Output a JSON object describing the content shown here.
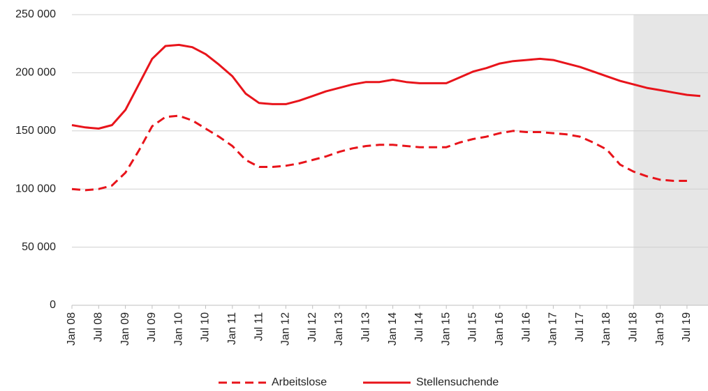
{
  "chart_data": {
    "type": "line",
    "categories": [
      "Jan 08",
      null,
      "Jul 08",
      null,
      "Jan 09",
      null,
      "Jul 09",
      null,
      "Jan 10",
      null,
      "Jul 10",
      null,
      "Jan 11",
      null,
      "Jul 11",
      null,
      "Jan 12",
      null,
      "Jul 12",
      null,
      "Jan 13",
      null,
      "Jul 13",
      null,
      "Jan 14",
      null,
      "Jul 14",
      null,
      "Jan 15",
      null,
      "Jul 15",
      null,
      "Jan 16",
      null,
      "Jul 16",
      null,
      "Jan 17",
      null,
      "Jul 17",
      null,
      "Jan 18",
      null,
      "Jul 18",
      null,
      "Jan 19",
      null,
      "Jul 19",
      null
    ],
    "series": [
      {
        "name": "Arbeitslose",
        "color": "#e8141b",
        "dashed": true,
        "values": [
          100000,
          99000,
          100000,
          103000,
          114000,
          133000,
          154000,
          162000,
          163000,
          159000,
          152000,
          145000,
          137000,
          125000,
          119000,
          119000,
          120000,
          122000,
          125000,
          128000,
          132000,
          135000,
          137000,
          138000,
          138000,
          137000,
          136000,
          136000,
          136000,
          140000,
          143000,
          145000,
          148000,
          150000,
          149000,
          149000,
          148000,
          147000,
          145000,
          140000,
          134000,
          121000,
          115000,
          111000,
          108000,
          107000,
          107000,
          null
        ]
      },
      {
        "name": "Stellensuchende",
        "color": "#e8141b",
        "dashed": false,
        "values": [
          155000,
          153000,
          152000,
          155000,
          168000,
          190000,
          212000,
          223000,
          224000,
          222000,
          216000,
          207000,
          197000,
          182000,
          174000,
          173000,
          173000,
          176000,
          180000,
          184000,
          187000,
          190000,
          192000,
          192000,
          194000,
          192000,
          191000,
          191000,
          191000,
          196000,
          201000,
          204000,
          208000,
          210000,
          211000,
          212000,
          211000,
          208000,
          205000,
          201000,
          197000,
          193000,
          190000,
          187000,
          185000,
          183000,
          181000,
          180000
        ]
      }
    ],
    "ylim": [
      0,
      250000
    ],
    "yticks": [
      0,
      {
        "value": 50000,
        "label": "50 000"
      },
      {
        "value": 100000,
        "label": "100 000"
      },
      {
        "value": 150000,
        "label": "150 000"
      },
      {
        "value": 200000,
        "label": "200 000"
      },
      {
        "value": 250000,
        "label": "250 000"
      }
    ],
    "grid": true,
    "shaded_from": "Jul 18",
    "legend": "bottom"
  }
}
